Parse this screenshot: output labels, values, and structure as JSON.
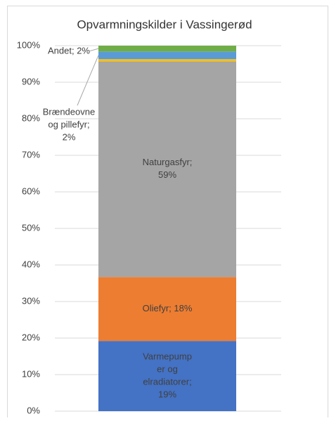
{
  "chart_data": {
    "type": "stacked_bar",
    "title": "Opvarmningskilder i Vassingerød",
    "ylim": [
      0,
      100
    ],
    "yticks": [
      {
        "value": 0,
        "label": "0%"
      },
      {
        "value": 10,
        "label": "10%"
      },
      {
        "value": 20,
        "label": "20%"
      },
      {
        "value": 30,
        "label": "30%"
      },
      {
        "value": 40,
        "label": "40%"
      },
      {
        "value": 50,
        "label": "50%"
      },
      {
        "value": 60,
        "label": "60%"
      },
      {
        "value": 70,
        "label": "70%"
      },
      {
        "value": 80,
        "label": "80%"
      },
      {
        "value": 90,
        "label": "90%"
      },
      {
        "value": 100,
        "label": "100%"
      }
    ],
    "grid": true,
    "series": [
      {
        "color": "#4472c4",
        "values": [
          19.2
        ],
        "value_labels": [
          [
            "Varmepump",
            "er og",
            "elradiatorer;",
            "19%"
          ]
        ]
      },
      {
        "color": "#ed7d31",
        "values": [
          17.5
        ],
        "value_labels": [
          [
            "Oliefyr; 18%"
          ]
        ]
      },
      {
        "color": "#a5a5a5",
        "values": [
          59.0
        ],
        "value_labels": [
          [
            "Naturgasfyr;",
            "59%"
          ]
        ]
      },
      {
        "color": "#ffc000",
        "values": [
          0.6
        ]
      },
      {
        "color": "#5b9bd5",
        "values": [
          2.1
        ],
        "value_labels": [
          [
            "Brændeovne",
            "og pillefyr;",
            "2%"
          ]
        ]
      },
      {
        "color": "#70ad47",
        "values": [
          1.6
        ],
        "value_labels": [
          [
            "Andet; 2%"
          ]
        ]
      }
    ]
  }
}
